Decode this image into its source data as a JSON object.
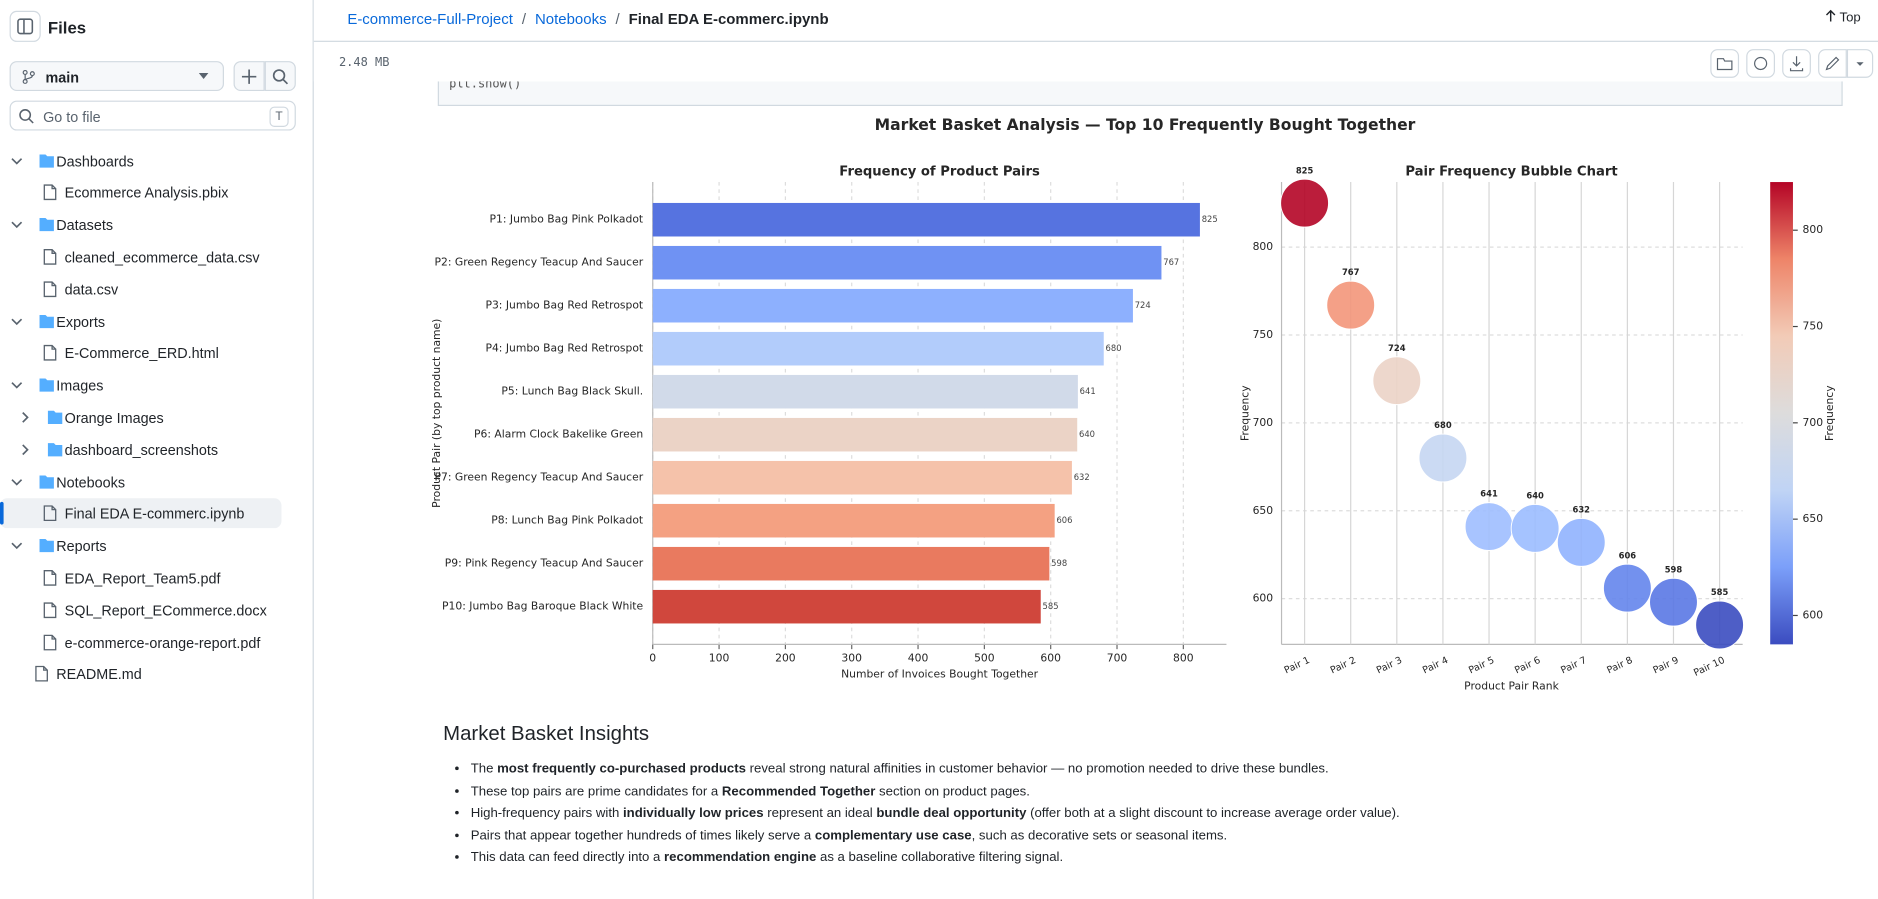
{
  "sidebar": {
    "title": "Files",
    "branch": "main",
    "search_placeholder": "Go to file",
    "search_shortcut": "T",
    "tree": [
      {
        "label": "Dashboards",
        "kind": "folder",
        "level": 0,
        "expanded": true
      },
      {
        "label": "Ecommerce Analysis.pbix",
        "kind": "file",
        "level": 1
      },
      {
        "label": "Datasets",
        "kind": "folder",
        "level": 0,
        "expanded": true
      },
      {
        "label": "cleaned_ecommerce_data.csv",
        "kind": "file",
        "level": 1
      },
      {
        "label": "data.csv",
        "kind": "file",
        "level": 1
      },
      {
        "label": "Exports",
        "kind": "folder",
        "level": 0,
        "expanded": true
      },
      {
        "label": "E-Commerce_ERD.html",
        "kind": "file",
        "level": 1
      },
      {
        "label": "Images",
        "kind": "folder",
        "level": 0,
        "expanded": true
      },
      {
        "label": "Orange Images",
        "kind": "folder",
        "level": 1,
        "expanded": false
      },
      {
        "label": "dashboard_screenshots",
        "kind": "folder",
        "level": 1,
        "expanded": false
      },
      {
        "label": "Notebooks",
        "kind": "folder",
        "level": 0,
        "expanded": true
      },
      {
        "label": "Final EDA E-commerc.ipynb",
        "kind": "file",
        "level": 1,
        "selected": true
      },
      {
        "label": "Reports",
        "kind": "folder",
        "level": 0,
        "expanded": true
      },
      {
        "label": "EDA_Report_Team5.pdf",
        "kind": "file",
        "level": 1
      },
      {
        "label": "SQL_Report_ECommerce.docx",
        "kind": "file",
        "level": 1
      },
      {
        "label": "e-commerce-orange-report.pdf",
        "kind": "file",
        "level": 1
      },
      {
        "label": "README.md",
        "kind": "file",
        "level": 0
      }
    ]
  },
  "header": {
    "breadcrumbs": [
      "E-commerce-Full-Project",
      "Notebooks",
      "Final EDA E-commerc.ipynb"
    ],
    "separator": "/",
    "top_link": "Top",
    "file_size": "2.48 MB"
  },
  "notebook": {
    "code": "plt.show()",
    "figure_title": "Market Basket Analysis — Top 10 Frequently Bought Together",
    "insights": {
      "heading": "Market Basket Insights",
      "bullets": [
        [
          "The ",
          "most frequently co-purchased products",
          " reveal strong natural affinities in customer behavior — no promotion needed to drive these bundles."
        ],
        [
          "These top pairs are prime candidates for a ",
          "Recommended Together",
          " section on product pages."
        ],
        [
          "High-frequency pairs with ",
          "individually low prices",
          " represent an ideal ",
          "bundle deal opportunity",
          " (offer both at a slight discount to increase average order value)."
        ],
        [
          "Pairs that appear together hundreds of times likely serve a ",
          "complementary use case",
          ", such as decorative sets or seasonal items."
        ],
        [
          "This data can feed directly into a ",
          "recommendation engine",
          " as a baseline collaborative filtering signal."
        ]
      ]
    }
  },
  "chart_data": [
    {
      "type": "bar",
      "orientation": "horizontal",
      "title": "Frequency of Product Pairs",
      "xlabel": "Number of Invoices Bought Together",
      "ylabel": "Product Pair (by top product name)",
      "categories": [
        "P1: Jumbo Bag Pink Polkadot",
        "P2: Green Regency Teacup And Saucer",
        "P3: Jumbo Bag Red Retrospot",
        "P4: Jumbo Bag Red Retrospot",
        "P5: Lunch Bag  Black Skull.",
        "P6: Alarm Clock Bakelike Green",
        "P7: Green Regency Teacup And Saucer",
        "P8: Lunch Bag Pink Polkadot",
        "P9: Pink Regency Teacup And Saucer",
        "P10: Jumbo  Bag Baroque Black White"
      ],
      "values": [
        825,
        767,
        724,
        680,
        641,
        640,
        632,
        606,
        598,
        585
      ],
      "colors": [
        "#5673e0",
        "#6f92f3",
        "#8db0fe",
        "#b2ccfb",
        "#d1dae9",
        "#ebd3c6",
        "#f5c2aa",
        "#f4a182",
        "#e97a5f",
        "#d0473d"
      ],
      "xlim": [
        0,
        865
      ],
      "xticks": [
        0,
        100,
        200,
        300,
        400,
        500,
        600,
        700,
        800
      ],
      "grid": true
    },
    {
      "type": "bubble",
      "title": "Pair Frequency Bubble Chart",
      "xlabel": "Product Pair Rank",
      "ylabel": "Frequency",
      "categories": [
        "Pair 1",
        "Pair 2",
        "Pair 3",
        "Pair 4",
        "Pair 5",
        "Pair 6",
        "Pair 7",
        "Pair 8",
        "Pair 9",
        "Pair 10"
      ],
      "values": [
        825,
        767,
        724,
        680,
        641,
        640,
        632,
        606,
        598,
        585
      ],
      "colors": [
        "#b40426",
        "#f3967a",
        "#ebd3c6",
        "#c5d6f2",
        "#9ebeff",
        "#9bbcff",
        "#90b2fe",
        "#6485ec",
        "#5a78e4",
        "#3b4cc0"
      ],
      "ylim": [
        574,
        837
      ],
      "yticks": [
        600,
        650,
        700,
        750,
        800
      ],
      "grid": true,
      "colorbar": {
        "label": "Frequency",
        "lim": [
          585,
          825
        ],
        "ticks": [
          600,
          650,
          700,
          750,
          800
        ],
        "colors": [
          "#3b4cc0",
          "#7b9ff9",
          "#c0d4f5",
          "#dddcdc",
          "#f2cbb7",
          "#ee8468",
          "#b40426"
        ]
      }
    }
  ]
}
